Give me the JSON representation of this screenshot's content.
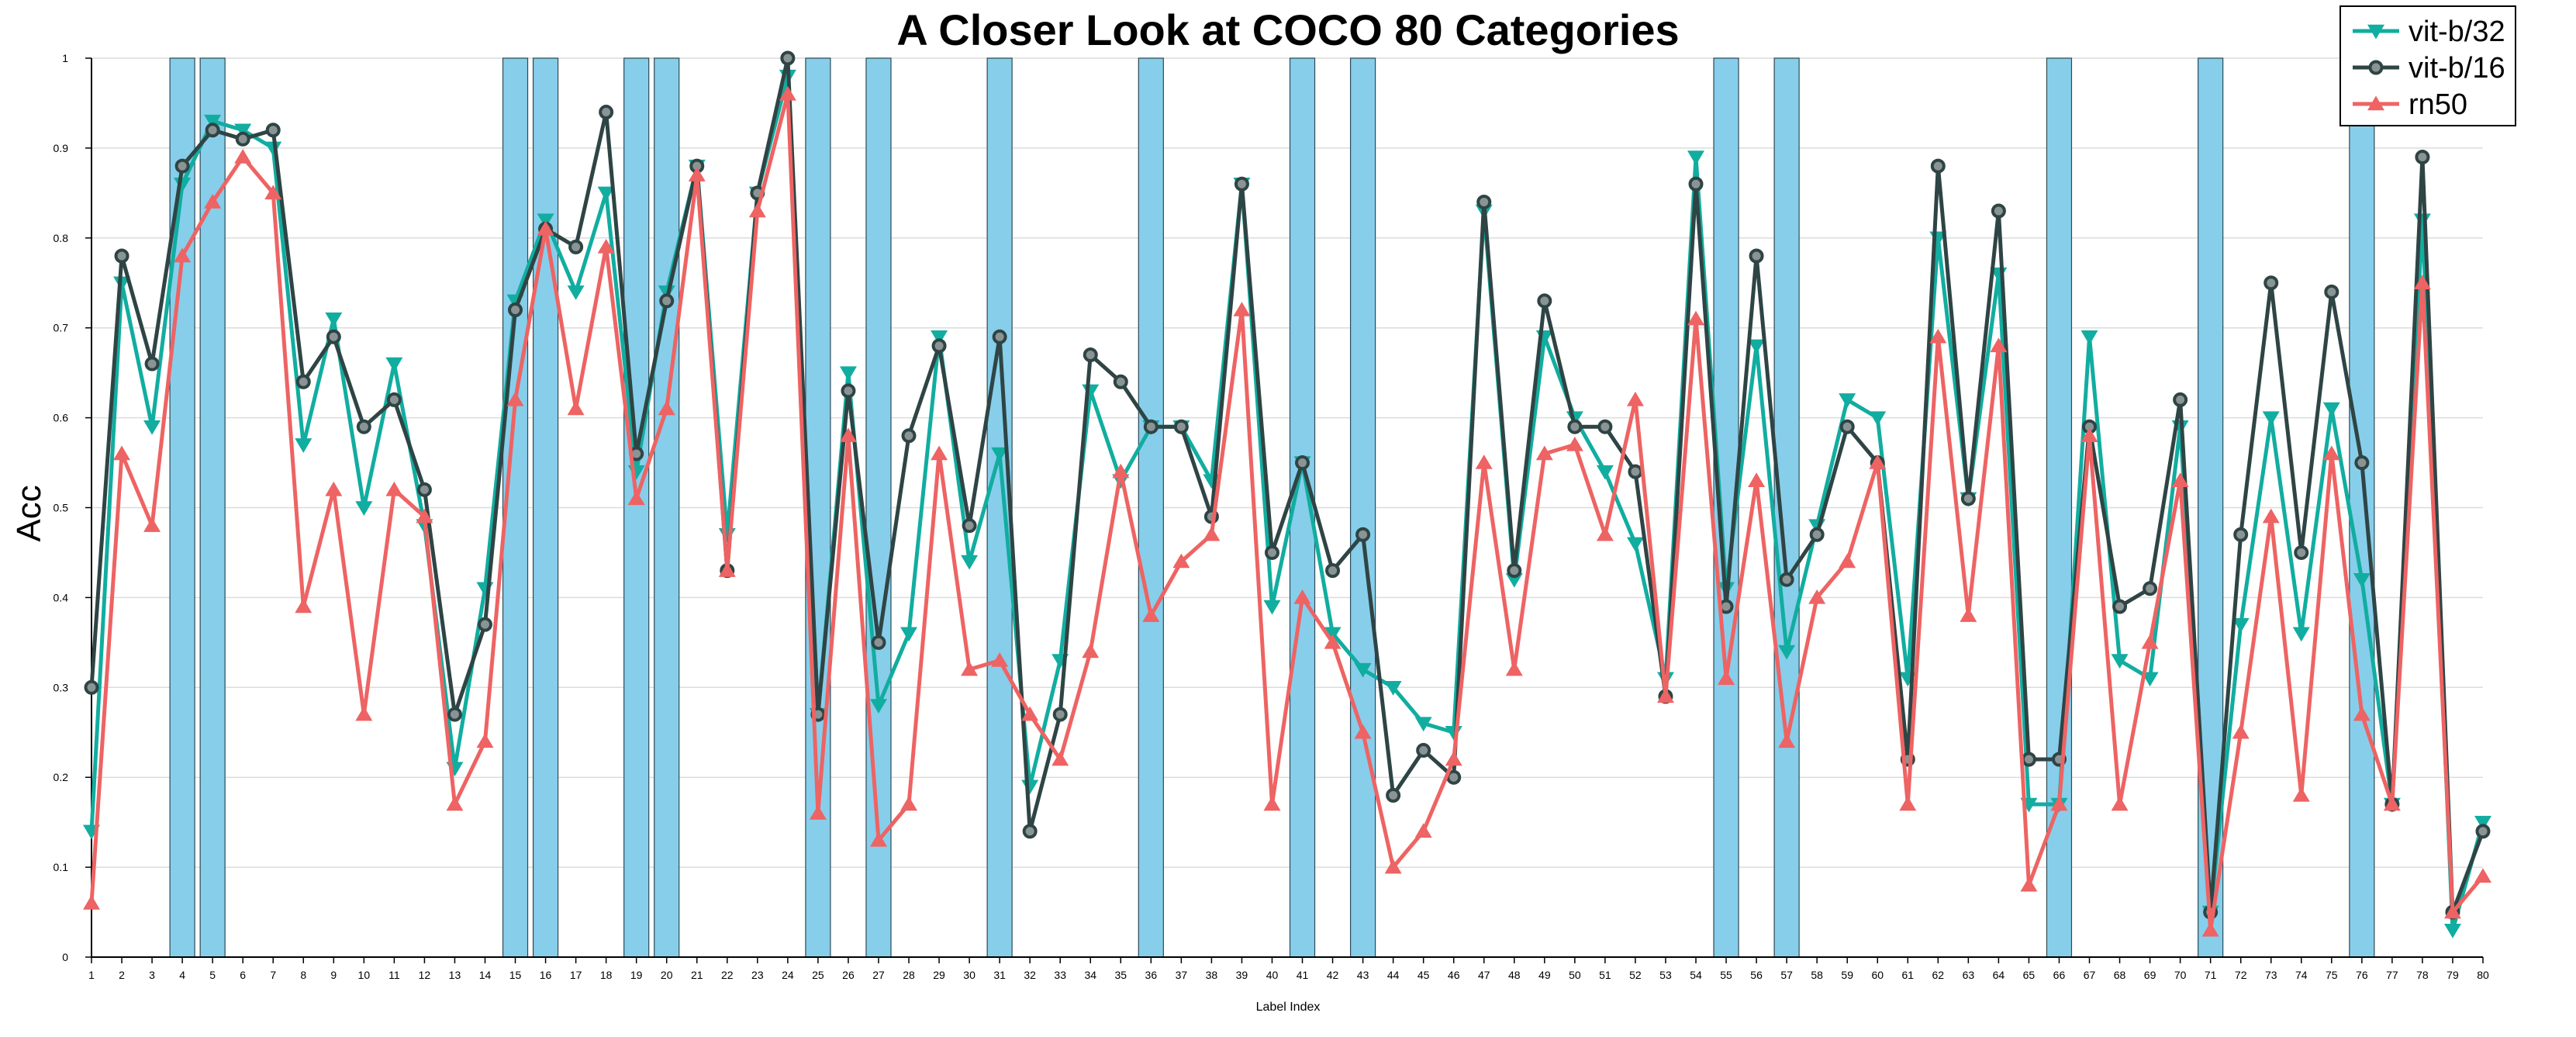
{
  "chart_data": {
    "type": "line",
    "title": "A Closer Look at COCO 80 Categories",
    "xlabel": "Label Index",
    "ylabel": "Acc",
    "ylim": [
      0,
      1
    ],
    "xlim": [
      1,
      80
    ],
    "yticks": [
      "0",
      "0.1",
      "0.2",
      "0.3",
      "0.4",
      "0.5",
      "0.6",
      "0.7",
      "0.8",
      "0.9",
      "1"
    ],
    "x": [
      1,
      2,
      3,
      4,
      5,
      6,
      7,
      8,
      9,
      10,
      11,
      12,
      13,
      14,
      15,
      16,
      17,
      18,
      19,
      20,
      21,
      22,
      23,
      24,
      25,
      26,
      27,
      28,
      29,
      30,
      31,
      32,
      33,
      34,
      35,
      36,
      37,
      38,
      39,
      40,
      41,
      42,
      43,
      44,
      45,
      46,
      47,
      48,
      49,
      50,
      51,
      52,
      53,
      54,
      55,
      56,
      57,
      58,
      59,
      60,
      61,
      62,
      63,
      64,
      65,
      66,
      67,
      68,
      69,
      70,
      71,
      72,
      73,
      74,
      75,
      76,
      77,
      78,
      79,
      80
    ],
    "x_tick_labels": [
      "1",
      "2",
      "3",
      "4",
      "5",
      "6",
      "7",
      "8",
      "9",
      "10",
      "11",
      "12",
      "13",
      "14",
      "15",
      "16",
      "17",
      "18",
      "19",
      "20",
      "21",
      "22",
      "23",
      "24",
      "25",
      "26",
      "27",
      "28",
      "29",
      "30",
      "31",
      "32",
      "33",
      "34",
      "35",
      "36",
      "37",
      "38",
      "39",
      "40",
      "41",
      "42",
      "43",
      "44",
      "45",
      "46",
      "47",
      "48",
      "49",
      "50",
      "51",
      "52",
      "53",
      "54",
      "55",
      "56",
      "57",
      "58",
      "59",
      "60",
      "61",
      "62",
      "63",
      "64",
      "65",
      "66",
      "67",
      "68",
      "69",
      "70",
      "71",
      "72",
      "73",
      "74",
      "75",
      "76",
      "77",
      "78",
      "79",
      "80"
    ],
    "highlighted_categories": [
      4,
      5,
      15,
      16,
      19,
      20,
      25,
      27,
      31,
      36,
      41,
      43,
      55,
      57,
      66,
      71,
      76
    ],
    "highlight_color": "#87CEEB",
    "legend_position": "top-right",
    "grid": true,
    "series": [
      {
        "name": "vit-b/32",
        "color": "#11ADA0",
        "marker": "triangle-down",
        "values": [
          0.14,
          0.75,
          0.59,
          0.86,
          0.93,
          0.92,
          0.9,
          0.57,
          0.71,
          0.5,
          0.66,
          0.48,
          0.21,
          0.41,
          0.73,
          0.82,
          0.74,
          0.85,
          0.54,
          0.74,
          0.88,
          0.47,
          0.85,
          0.98,
          0.27,
          0.65,
          0.28,
          0.36,
          0.69,
          0.44,
          0.56,
          0.19,
          0.33,
          0.63,
          0.53,
          0.59,
          0.59,
          0.53,
          0.86,
          0.39,
          0.55,
          0.36,
          0.32,
          0.3,
          0.26,
          0.25,
          0.83,
          0.42,
          0.69,
          0.6,
          0.54,
          0.46,
          0.31,
          0.89,
          0.41,
          0.68,
          0.34,
          0.48,
          0.62,
          0.6,
          0.31,
          0.8,
          0.51,
          0.76,
          0.17,
          0.17,
          0.69,
          0.33,
          0.31,
          0.59,
          0.05,
          0.37,
          0.6,
          0.36,
          0.61,
          0.42,
          0.17,
          0.82,
          0.03,
          0.15
        ]
      },
      {
        "name": "vit-b/16",
        "color": "#2F4444",
        "marker": "circle",
        "values": [
          0.3,
          0.78,
          0.66,
          0.88,
          0.92,
          0.91,
          0.92,
          0.64,
          0.69,
          0.59,
          0.62,
          0.52,
          0.27,
          0.37,
          0.72,
          0.81,
          0.79,
          0.94,
          0.56,
          0.73,
          0.88,
          0.43,
          0.85,
          1.0,
          0.27,
          0.63,
          0.35,
          0.58,
          0.68,
          0.48,
          0.69,
          0.14,
          0.27,
          0.67,
          0.64,
          0.59,
          0.59,
          0.49,
          0.86,
          0.45,
          0.55,
          0.43,
          0.47,
          0.18,
          0.23,
          0.2,
          0.84,
          0.43,
          0.73,
          0.59,
          0.59,
          0.54,
          0.29,
          0.86,
          0.39,
          0.78,
          0.42,
          0.47,
          0.59,
          0.55,
          0.22,
          0.88,
          0.51,
          0.83,
          0.22,
          0.22,
          0.59,
          0.39,
          0.41,
          0.62,
          0.05,
          0.47,
          0.75,
          0.45,
          0.74,
          0.55,
          0.17,
          0.89,
          0.05,
          0.14
        ]
      },
      {
        "name": "rn50",
        "color": "#EE6363",
        "marker": "triangle-up",
        "values": [
          0.06,
          0.56,
          0.48,
          0.78,
          0.84,
          0.89,
          0.85,
          0.39,
          0.52,
          0.27,
          0.52,
          0.49,
          0.17,
          0.24,
          0.62,
          0.81,
          0.61,
          0.79,
          0.51,
          0.61,
          0.87,
          0.43,
          0.83,
          0.96,
          0.16,
          0.58,
          0.13,
          0.17,
          0.56,
          0.32,
          0.33,
          0.27,
          0.22,
          0.34,
          0.54,
          0.38,
          0.44,
          0.47,
          0.72,
          0.17,
          0.4,
          0.35,
          0.25,
          0.1,
          0.14,
          0.22,
          0.55,
          0.32,
          0.56,
          0.57,
          0.47,
          0.62,
          0.29,
          0.71,
          0.31,
          0.53,
          0.24,
          0.4,
          0.44,
          0.55,
          0.17,
          0.69,
          0.38,
          0.68,
          0.08,
          0.17,
          0.58,
          0.17,
          0.35,
          0.53,
          0.03,
          0.25,
          0.49,
          0.18,
          0.56,
          0.27,
          0.17,
          0.75,
          0.05,
          0.09
        ]
      }
    ]
  }
}
